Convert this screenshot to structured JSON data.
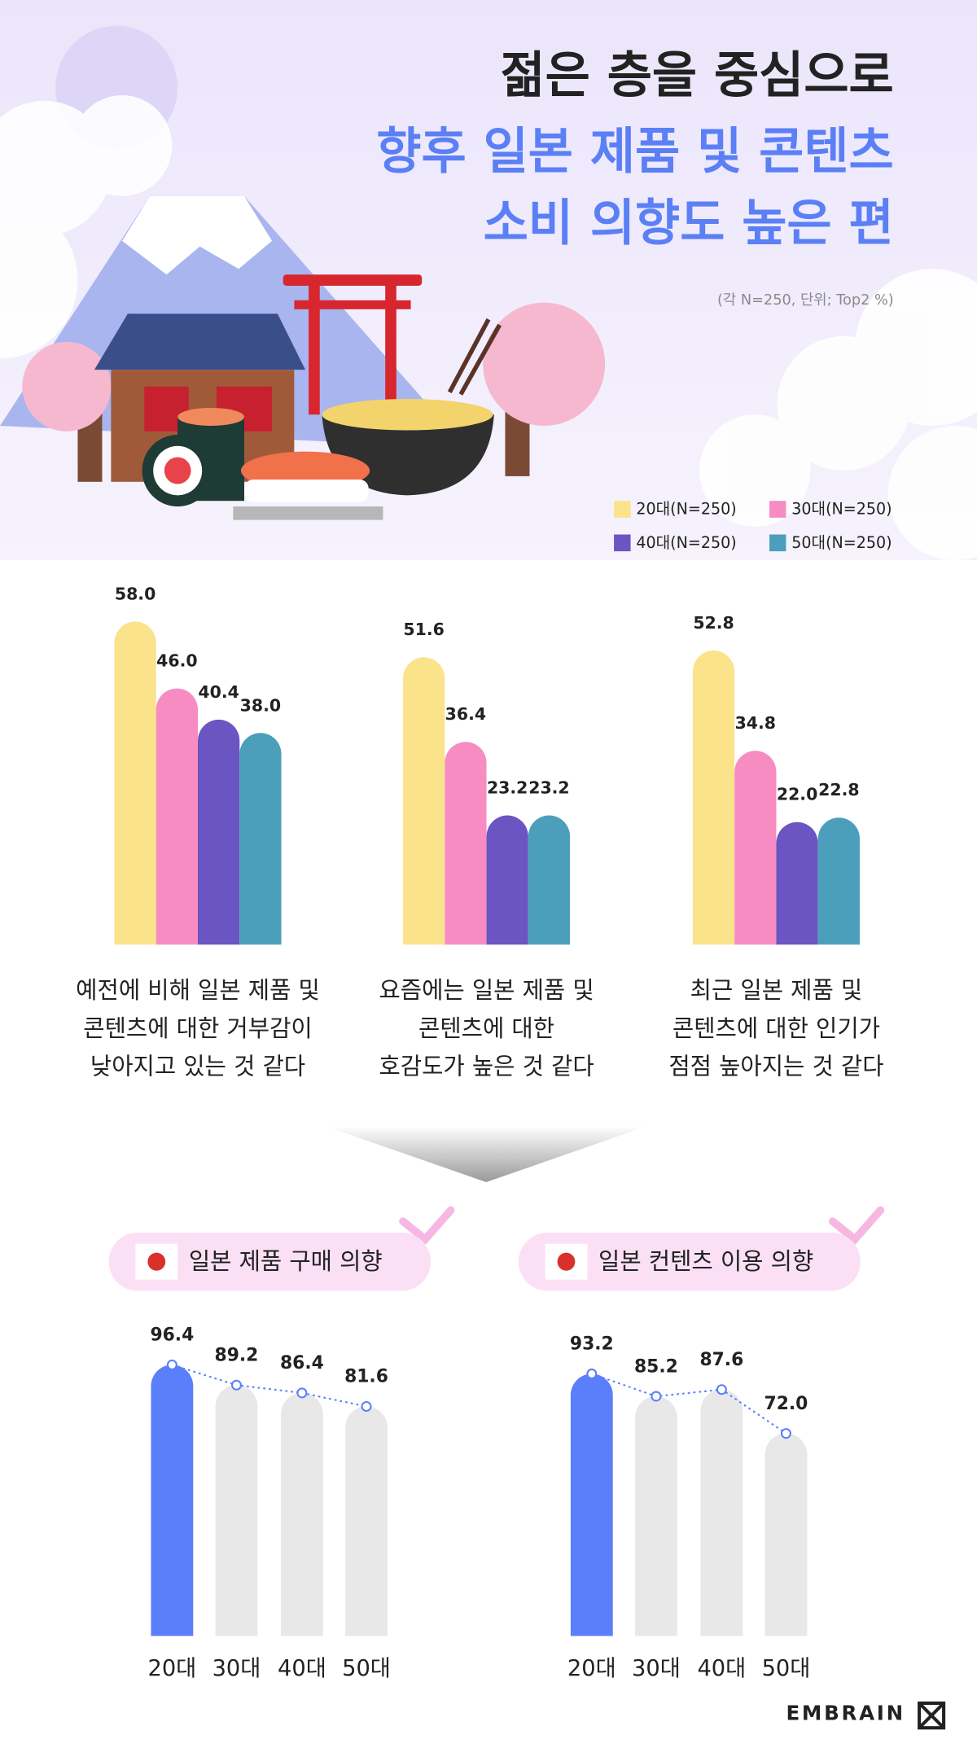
{
  "header": {
    "title_lines": [
      "젊은 층을 중심으로",
      "향후 일본 제품 및 콘텐츠",
      "소비 의향도 높은 편"
    ],
    "note": "(각 N=250, 단위; Top2 %)"
  },
  "chart_data": [
    {
      "type": "grouped-bar",
      "categories": [
        [
          "예전에 비해 일본 제품 및",
          "콘텐츠에 대한 거부감이",
          "낮아지고 있는 것 같다"
        ],
        [
          "요즘에는 일본 제품 및",
          "콘텐츠에 대한",
          "호감도가 높은 것 같다"
        ],
        [
          "최근 일본 제품 및",
          "콘텐츠에 대한 인기가",
          "점점 높아지는 것 같다"
        ]
      ],
      "series": [
        {
          "name": "20대(N=250)",
          "color": "#fbe38b",
          "values": [
            58.0,
            51.6,
            52.8
          ],
          "value_labels": [
            "58.0",
            "51.6",
            "52.8"
          ]
        },
        {
          "name": "30대(N=250)",
          "color": "#f78cc3",
          "values": [
            46.0,
            36.4,
            34.8
          ],
          "value_labels": [
            "46.0",
            "36.4",
            "34.8"
          ]
        },
        {
          "name": "40대(N=250)",
          "color": "#6a55c2",
          "values": [
            40.4,
            23.2,
            22.0
          ],
          "value_labels": [
            "40.4",
            "23.2",
            "22.0"
          ]
        },
        {
          "name": "50대(N=250)",
          "color": "#4c9fbb",
          "values": [
            38.0,
            23.2,
            22.8
          ],
          "value_labels": [
            "38.0",
            "23.2",
            "22.8"
          ]
        }
      ]
    },
    {
      "type": "bar-trend",
      "title": "일본 제품 구매 의향",
      "categories": [
        "20대",
        "30대",
        "40대",
        "50대"
      ],
      "values": [
        96.4,
        89.2,
        86.4,
        81.6
      ],
      "value_labels": [
        "96.4",
        "89.2",
        "86.4",
        "81.6"
      ],
      "colors": [
        "#5b7ffb",
        "#e8e8e8",
        "#e8e8e8",
        "#e8e8e8"
      ],
      "line_color": "#5b7ffb"
    },
    {
      "type": "bar-trend",
      "title": "일본 컨텐츠 이용 의향",
      "categories": [
        "20대",
        "30대",
        "40대",
        "50대"
      ],
      "values": [
        93.2,
        85.2,
        87.6,
        72.0
      ],
      "value_labels": [
        "93.2",
        "85.2",
        "87.6",
        "72.0"
      ],
      "colors": [
        "#5b7ffb",
        "#e8e8e8",
        "#e8e8e8",
        "#e8e8e8"
      ],
      "line_color": "#5b7ffb"
    }
  ],
  "footer": {
    "logo": "EMBRAIN"
  }
}
